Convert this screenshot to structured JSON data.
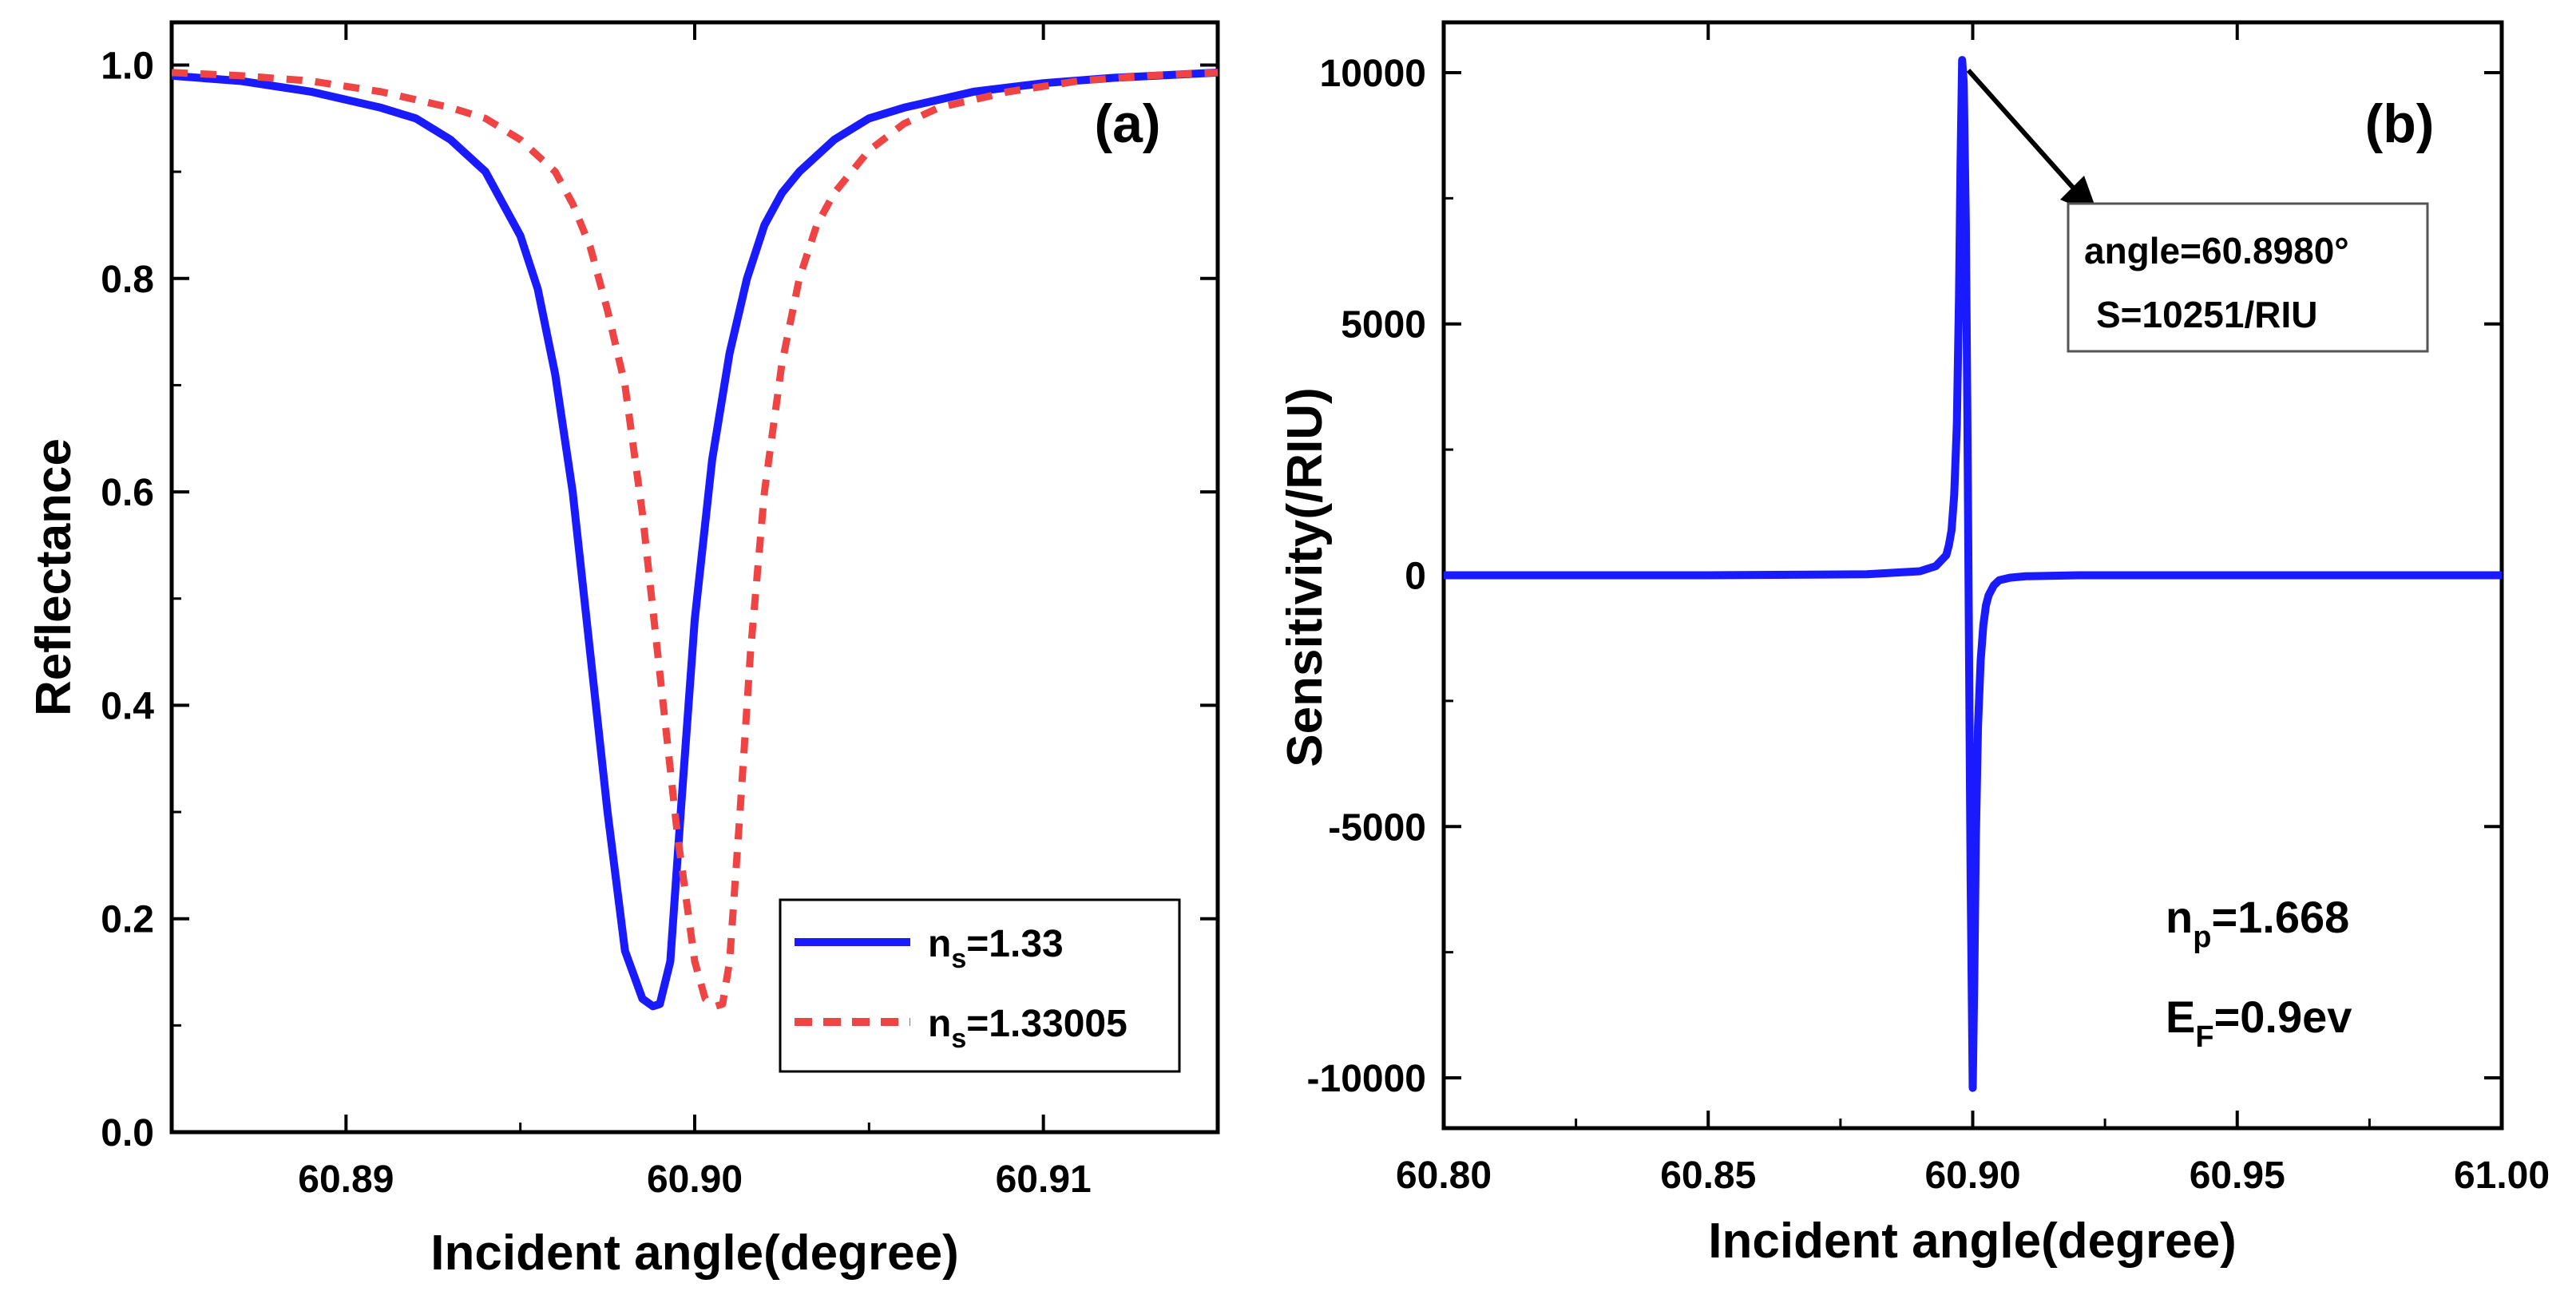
{
  "chart_data": [
    {
      "type": "line",
      "panel_label": "(a)",
      "xlabel": "Incident angle(degree)",
      "ylabel": "Reflectance",
      "xlim": [
        60.885,
        60.915
      ],
      "ylim": [
        0.0,
        1.04
      ],
      "xticks": [
        60.89,
        60.9,
        60.91
      ],
      "xtick_labels": [
        "60.89",
        "60.90",
        "60.91"
      ],
      "yticks": [
        0.0,
        0.2,
        0.4,
        0.6,
        0.8,
        1.0
      ],
      "ytick_labels": [
        "0.0",
        "0.2",
        "0.4",
        "0.6",
        "0.8",
        "1.0"
      ],
      "legend_position": "bottom-right",
      "series": [
        {
          "name": "n_s=1.33",
          "legend_main": "n",
          "legend_sub": "s",
          "legend_value": "=1.33",
          "color": "#1a1aff",
          "style": "solid",
          "x": [
            60.885,
            60.887,
            60.889,
            60.891,
            60.892,
            60.893,
            60.894,
            60.895,
            60.8955,
            60.896,
            60.8965,
            60.897,
            60.8975,
            60.898,
            60.8985,
            60.8988,
            60.899,
            60.8993,
            60.8996,
            60.9,
            60.9005,
            60.901,
            60.9015,
            60.902,
            60.9025,
            60.903,
            60.904,
            60.905,
            60.906,
            60.908,
            60.91,
            60.912,
            60.915
          ],
          "y": [
            0.99,
            0.985,
            0.975,
            0.96,
            0.95,
            0.93,
            0.9,
            0.84,
            0.79,
            0.71,
            0.6,
            0.45,
            0.3,
            0.17,
            0.125,
            0.118,
            0.12,
            0.16,
            0.3,
            0.48,
            0.63,
            0.73,
            0.8,
            0.85,
            0.88,
            0.9,
            0.93,
            0.95,
            0.96,
            0.975,
            0.983,
            0.988,
            0.993
          ]
        },
        {
          "name": "n_s=1.33005",
          "legend_main": "n",
          "legend_sub": "s",
          "legend_value": "=1.33005",
          "color": "#ef4444",
          "style": "dashed",
          "x": [
            60.885,
            60.887,
            60.889,
            60.891,
            60.893,
            60.894,
            60.895,
            60.896,
            60.8965,
            60.897,
            60.8975,
            60.898,
            60.8985,
            60.899,
            60.8995,
            60.9,
            60.9003,
            60.9006,
            60.9008,
            60.901,
            60.9013,
            60.9016,
            60.902,
            60.9025,
            60.903,
            60.9035,
            60.904,
            60.905,
            60.906,
            60.907,
            60.909,
            60.911,
            60.913,
            60.915
          ],
          "y": [
            0.993,
            0.99,
            0.985,
            0.975,
            0.96,
            0.95,
            0.93,
            0.9,
            0.87,
            0.83,
            0.77,
            0.7,
            0.58,
            0.43,
            0.28,
            0.16,
            0.125,
            0.118,
            0.12,
            0.16,
            0.3,
            0.45,
            0.6,
            0.72,
            0.8,
            0.85,
            0.88,
            0.92,
            0.945,
            0.96,
            0.975,
            0.985,
            0.99,
            0.993
          ]
        }
      ]
    },
    {
      "type": "line",
      "panel_label": "(b)",
      "xlabel": "Incident angle(degree)",
      "ylabel": "Sensitivity(/RIU)",
      "xlim": [
        60.8,
        61.0
      ],
      "ylim": [
        -11000,
        11000
      ],
      "xticks": [
        60.8,
        60.85,
        60.9,
        60.95,
        61.0
      ],
      "xtick_labels": [
        "60.80",
        "60.85",
        "60.90",
        "60.95",
        "61.00"
      ],
      "yticks": [
        -10000,
        -5000,
        0,
        5000,
        10000
      ],
      "ytick_labels": [
        "-10000",
        "-5000",
        "0",
        "5000",
        "10000"
      ],
      "annotation": {
        "line1": "angle=60.8980°",
        "line2": "S=10251/RIU",
        "point_x": 60.898,
        "point_y": 10251
      },
      "params": [
        {
          "main": "n",
          "sub": "p",
          "value": "=1.668"
        },
        {
          "main": "E",
          "sub": "F",
          "value": "=0.9ev"
        }
      ],
      "series": [
        {
          "name": "Sensitivity",
          "color": "#1a1aff",
          "style": "solid",
          "x": [
            60.8,
            60.85,
            60.88,
            60.89,
            60.893,
            60.895,
            60.8955,
            60.896,
            60.8965,
            60.897,
            60.8974,
            60.8977,
            60.898,
            60.8983,
            60.8987,
            60.899,
            60.8993,
            60.8996,
            60.9,
            60.9003,
            60.9006,
            60.901,
            60.9015,
            60.902,
            60.9025,
            60.903,
            60.904,
            60.905,
            60.907,
            60.91,
            60.92,
            60.95,
            61.0
          ],
          "y": [
            0,
            0,
            20,
            80,
            180,
            400,
            600,
            900,
            1600,
            3000,
            5500,
            8200,
            10251,
            9800,
            7000,
            3000,
            -1500,
            -6000,
            -10200,
            -8000,
            -5200,
            -3000,
            -1700,
            -1000,
            -600,
            -400,
            -200,
            -100,
            -50,
            -20,
            0,
            0,
            0
          ]
        }
      ]
    }
  ]
}
